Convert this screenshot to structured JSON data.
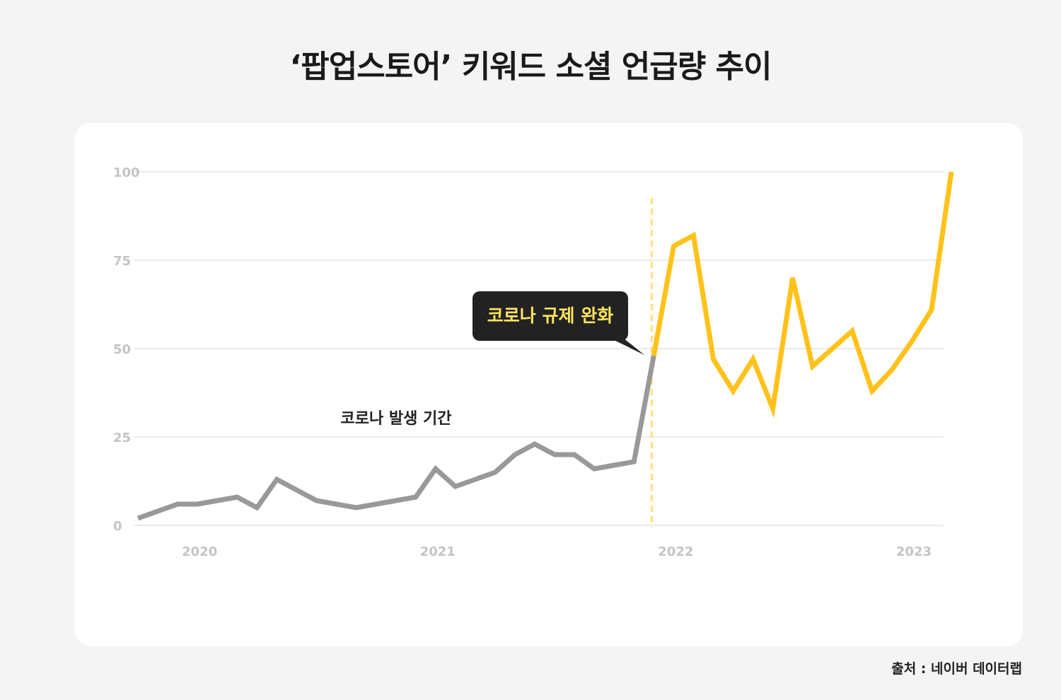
{
  "title": "‘팝업스토어’ 키워드 소셜 언급량 추이",
  "source": "출처 : 네이버 데이터랩",
  "colors": {
    "covid_line": "#999999",
    "post_line": "#FFC21A",
    "grid": "#e3e3e3",
    "tick_text": "#c4c4c4",
    "callout_bg": "#222222",
    "callout_text": "#FFE45C",
    "divider": "#FFE07A"
  },
  "chart_data": {
    "type": "line",
    "ylim": [
      0,
      100
    ],
    "y_ticks": [
      0,
      25,
      50,
      75,
      100
    ],
    "xlim": [
      "2019-11",
      "2023-03"
    ],
    "x_ticks": [
      {
        "label": "2020",
        "x": "2020-02"
      },
      {
        "label": "2021",
        "x": "2021-02"
      },
      {
        "label": "2022",
        "x": "2022-02"
      },
      {
        "label": "2023",
        "x": "2023-02"
      }
    ],
    "grid": "horizontal",
    "divider_x": "2022-01",
    "callout": "코로나 규제 완화",
    "annotation": "코로나 발생 기간",
    "series": [
      {
        "points": [
          {
            "x": "2019-11",
            "y": 2
          },
          {
            "x": "2019-12",
            "y": 4
          },
          {
            "x": "2020-01",
            "y": 6
          },
          {
            "x": "2020-02",
            "y": 6
          },
          {
            "x": "2020-03",
            "y": 7
          },
          {
            "x": "2020-04",
            "y": 8
          },
          {
            "x": "2020-05",
            "y": 5
          },
          {
            "x": "2020-06",
            "y": 13
          },
          {
            "x": "2020-07",
            "y": 10
          },
          {
            "x": "2020-08",
            "y": 7
          },
          {
            "x": "2020-09",
            "y": 6
          },
          {
            "x": "2020-10",
            "y": 5
          },
          {
            "x": "2020-11",
            "y": 6
          },
          {
            "x": "2020-12",
            "y": 7
          },
          {
            "x": "2021-01",
            "y": 8
          },
          {
            "x": "2021-02",
            "y": 16
          },
          {
            "x": "2021-03",
            "y": 11
          },
          {
            "x": "2021-04",
            "y": 13
          },
          {
            "x": "2021-05",
            "y": 15
          },
          {
            "x": "2021-06",
            "y": 20
          },
          {
            "x": "2021-07",
            "y": 23
          },
          {
            "x": "2021-08",
            "y": 20
          },
          {
            "x": "2021-09",
            "y": 20
          },
          {
            "x": "2021-10",
            "y": 16
          },
          {
            "x": "2021-11",
            "y": 17
          },
          {
            "x": "2021-12",
            "y": 18
          },
          {
            "x": "2022-01",
            "y": 48
          }
        ]
      },
      {
        "points": [
          {
            "x": "2022-01",
            "y": 48
          },
          {
            "x": "2022-02",
            "y": 79
          },
          {
            "x": "2022-03",
            "y": 82
          },
          {
            "x": "2022-04",
            "y": 47
          },
          {
            "x": "2022-05",
            "y": 38
          },
          {
            "x": "2022-06",
            "y": 47
          },
          {
            "x": "2022-07",
            "y": 33
          },
          {
            "x": "2022-08",
            "y": 70
          },
          {
            "x": "2022-09",
            "y": 45
          },
          {
            "x": "2022-10",
            "y": 50
          },
          {
            "x": "2022-11",
            "y": 55
          },
          {
            "x": "2022-12",
            "y": 38
          },
          {
            "x": "2023-01",
            "y": 44
          },
          {
            "x": "2023-02",
            "y": 52
          },
          {
            "x": "2023-03",
            "y": 61
          },
          {
            "x": "2023-04",
            "y": 100
          }
        ]
      }
    ]
  }
}
